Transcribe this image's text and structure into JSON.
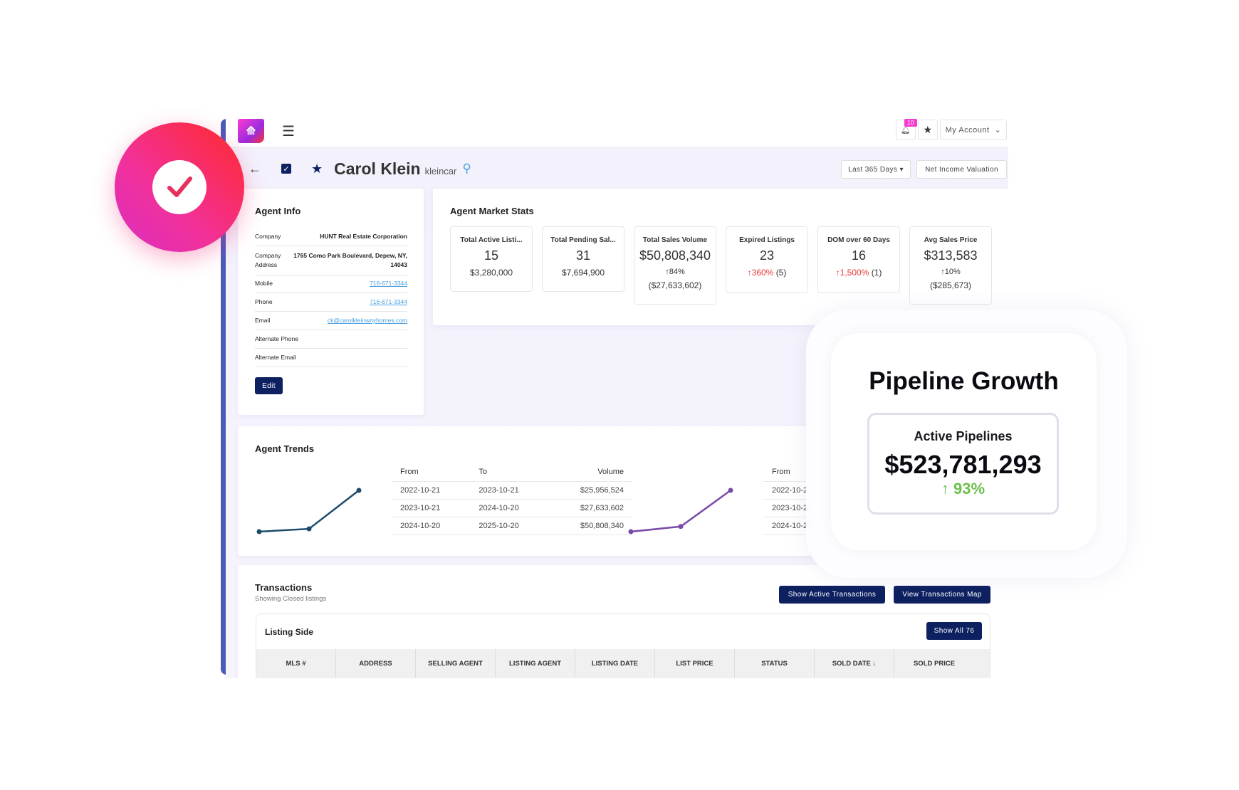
{
  "topbar": {
    "notifications_count": "10",
    "account_label": "My Account"
  },
  "header": {
    "name": "Carol Klein",
    "username": "kleincar",
    "range_label": "Last 365 Days",
    "net_income_label": "Net Income Valuation"
  },
  "agent_info": {
    "title": "Agent Info",
    "rows": [
      {
        "label": "Company",
        "value": "HUNT Real Estate Corporation"
      },
      {
        "label": "Company Address",
        "value": "1765 Como Park Boulevard, Depew, NY, 14043"
      },
      {
        "label": "Mobile",
        "value": "716-671-3344"
      },
      {
        "label": "Phone",
        "value": "716-671-3344"
      },
      {
        "label": "Email",
        "value": "ck@carolkleinwnyhomes.com"
      },
      {
        "label": "Alternate Phone",
        "value": ""
      },
      {
        "label": "Alternate Email",
        "value": ""
      }
    ],
    "edit_label": "Edit"
  },
  "market_stats": {
    "title": "Agent Market Stats",
    "stats": [
      {
        "label": "Total Active Listi...",
        "value": "15",
        "sub": "$3,280,000"
      },
      {
        "label": "Total Pending Sal...",
        "value": "31",
        "sub": "$7,694,900"
      },
      {
        "label": "Total Sales Volume",
        "value": "$50,808,340",
        "change": "↑84%",
        "change_dir": "up",
        "prev": "($27,633,602)"
      },
      {
        "label": "Expired Listings",
        "value": "23",
        "change": "↑360%",
        "change_dir": "down",
        "extra": "(5)"
      },
      {
        "label": "DOM over 60 Days",
        "value": "16",
        "change": "↑1,500%",
        "change_dir": "down",
        "extra": "(1)"
      },
      {
        "label": "Avg Sales Price",
        "value": "$313,583",
        "change": "↑10%",
        "change_dir": "up",
        "prev": "($285,673)"
      }
    ]
  },
  "trends": {
    "title": "Agent Trends",
    "table1": {
      "headers": [
        "From",
        "To",
        "Volume"
      ],
      "rows": [
        [
          "2022-10-21",
          "2023-10-21",
          "$25,956,524"
        ],
        [
          "2023-10-21",
          "2024-10-20",
          "$27,633,602"
        ],
        [
          "2024-10-20",
          "2025-10-20",
          "$50,808,340"
        ]
      ]
    },
    "table2": {
      "headers": [
        "From"
      ],
      "rows": [
        [
          "2022-10-21"
        ],
        [
          "2023-10-21"
        ],
        [
          "2024-10-20"
        ]
      ]
    },
    "spark1_values": [
      25956524,
      27633602,
      50808340
    ],
    "spark1_color": "#1b4a6b",
    "spark2_values": [
      1,
      1.3,
      3.4
    ],
    "spark2_color": "#7a4aa8"
  },
  "transactions": {
    "title": "Transactions",
    "subtitle": "Showing Closed listings",
    "show_active_label": "Show Active Transactions",
    "map_label": "View Transactions Map",
    "listing_side": {
      "title": "Listing Side",
      "show_all_label": "Show All 76",
      "columns": [
        "MLS #",
        "ADDRESS",
        "SELLING AGENT",
        "LISTING AGENT",
        "LISTING DATE",
        "LIST PRICE",
        "STATUS",
        "SOLD DATE ↓",
        "SOLD PRICE"
      ]
    }
  },
  "pipeline": {
    "title": "Pipeline Growth",
    "label": "Active Pipelines",
    "value": "$523,781,293",
    "change": "↑ 93%",
    "change_color": "#6cc04a"
  },
  "colors": {
    "navy": "#0d2060",
    "accent_pink": "#f63ad0",
    "up": "#7bc142",
    "down": "#e53935"
  }
}
